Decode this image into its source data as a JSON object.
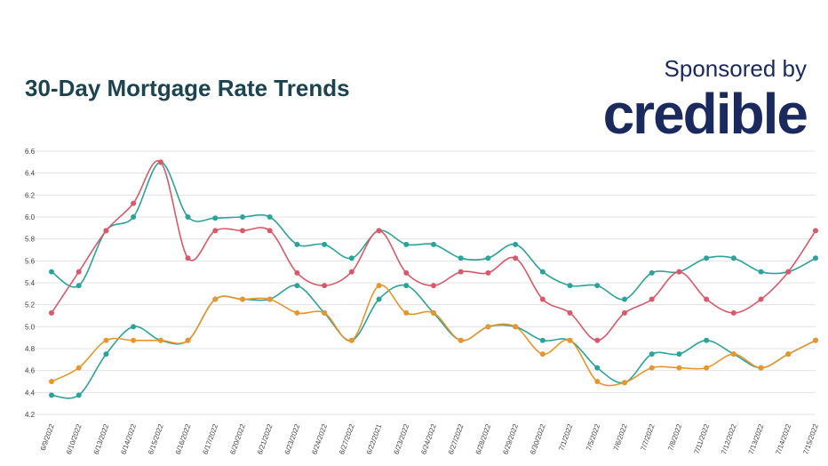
{
  "header": {
    "title": "30-Day Mortgage Rate Trends",
    "sponsor_label": "Sponsored by",
    "brand": "credible"
  },
  "colors": {
    "title": "#1c4350",
    "brand": "#1b2a5e",
    "teal": "#2aa39a",
    "red": "#d9596a",
    "orange": "#e8962c",
    "grid": "#e3e3e3"
  },
  "chart_data": {
    "type": "line",
    "title": "30-Day Mortgage Rate Trends",
    "xlabel": "",
    "ylabel": "",
    "ylim": [
      4.2,
      6.6
    ],
    "yticks": [
      "4.2",
      "4.4",
      "4.6",
      "4.8",
      "5.0",
      "5.2",
      "5.4",
      "5.6",
      "5.8",
      "6.0",
      "6.2",
      "6.4",
      "6.6"
    ],
    "grid": true,
    "legend": "none",
    "categories": [
      "6/9/2022",
      "6/10/2022",
      "6/13/2022",
      "6/14/2022",
      "6/15/2022",
      "6/16/2022",
      "6/17/2022",
      "6/20/2022",
      "6/21/2022",
      "6/23/2022",
      "6/24/2022",
      "6/27/2022",
      "6/22/2021",
      "6/23/2022",
      "6/24/2022",
      "6/27/2022",
      "6/28/2022",
      "6/29/2022",
      "6/30/2022",
      "7/1/2022",
      "7/5/2022",
      "7/6/2022",
      "7/7/2022",
      "7/8/2022",
      "7/11/2022",
      "7/12/2022",
      "7/13/2022",
      "7/14/2022",
      "7/15/2022"
    ],
    "series": [
      {
        "color": "#2aa39a",
        "values": [
          5.5,
          5.375,
          5.875,
          6.0,
          6.5,
          6.0,
          5.99,
          6.0,
          6.0,
          5.75,
          5.75,
          5.625,
          5.875,
          5.75,
          5.75,
          5.625,
          5.625,
          5.75,
          5.5,
          5.375,
          5.375,
          5.25,
          5.49,
          5.5,
          5.625,
          5.625,
          5.5,
          5.5,
          5.625
        ]
      },
      {
        "color": "#d9596a",
        "values": [
          5.125,
          5.5,
          5.875,
          6.125,
          6.5,
          5.625,
          5.875,
          5.875,
          5.875,
          5.49,
          5.375,
          5.5,
          5.875,
          5.49,
          5.375,
          5.5,
          5.49,
          5.625,
          5.25,
          5.125,
          4.875,
          5.125,
          5.25,
          5.5,
          5.25,
          5.125,
          5.25,
          5.5,
          5.875
        ]
      },
      {
        "color": "#2aa39a",
        "values": [
          4.375,
          4.375,
          4.75,
          5.0,
          4.875,
          4.875,
          5.25,
          5.25,
          5.25,
          5.375,
          5.125,
          4.875,
          5.25,
          5.375,
          5.125,
          4.875,
          5.0,
          5.0,
          4.875,
          4.875,
          4.625,
          4.49,
          4.75,
          4.75,
          4.875,
          4.75,
          4.625,
          4.75,
          4.875
        ]
      },
      {
        "color": "#e8962c",
        "values": [
          4.5,
          4.625,
          4.875,
          4.875,
          4.875,
          4.875,
          5.25,
          5.25,
          5.25,
          5.125,
          5.125,
          4.875,
          5.375,
          5.125,
          5.125,
          4.875,
          5.0,
          5.0,
          4.75,
          4.875,
          4.5,
          4.49,
          4.625,
          4.625,
          4.625,
          4.75,
          4.625,
          4.75,
          4.875
        ]
      }
    ]
  }
}
